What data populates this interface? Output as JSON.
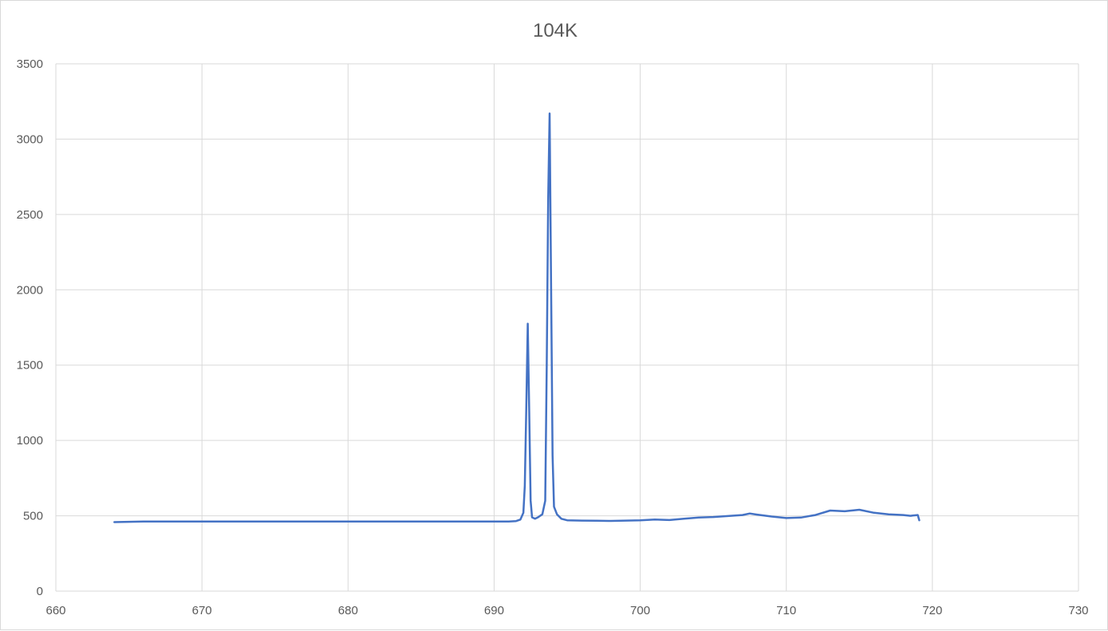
{
  "chart_data": {
    "type": "line",
    "title": "104K",
    "xlabel": "",
    "ylabel": "",
    "xlim": [
      660,
      730
    ],
    "ylim": [
      0,
      3500
    ],
    "x_ticks": [
      660,
      670,
      680,
      690,
      700,
      710,
      720,
      730
    ],
    "y_ticks": [
      0,
      500,
      1000,
      1500,
      2000,
      2500,
      3000,
      3500
    ],
    "grid": true,
    "legend": "none",
    "series_color": "#4472c4",
    "series": [
      {
        "x": [
          664.0,
          665.0,
          666.0,
          668.0,
          670.0,
          672.0,
          674.0,
          676.0,
          678.0,
          680.0,
          682.0,
          684.0,
          686.0,
          688.0,
          690.0,
          691.0,
          691.5,
          691.8,
          692.0,
          692.1,
          692.2,
          692.3,
          692.4,
          692.5,
          692.6,
          692.8,
          693.0,
          693.3,
          693.5,
          693.6,
          693.7,
          693.8,
          693.9,
          694.0,
          694.1,
          694.3,
          694.6,
          695.0,
          696.0,
          697.0,
          698.0,
          699.0,
          700.0,
          701.0,
          702.0,
          703.0,
          704.0,
          705.0,
          706.0,
          707.0,
          707.5,
          708.0,
          709.0,
          710.0,
          711.0,
          712.0,
          713.0,
          714.0,
          715.0,
          716.0,
          717.0,
          718.0,
          718.5,
          719.0,
          719.1
        ],
        "y": [
          458,
          460,
          462,
          462,
          462,
          462,
          462,
          462,
          462,
          462,
          462,
          462,
          462,
          462,
          462,
          462,
          465,
          475,
          520,
          700,
          1200,
          1775,
          1200,
          600,
          490,
          480,
          490,
          510,
          600,
          1500,
          2600,
          3170,
          2000,
          900,
          560,
          510,
          480,
          470,
          468,
          467,
          466,
          468,
          470,
          475,
          472,
          480,
          488,
          492,
          498,
          505,
          515,
          508,
          495,
          485,
          488,
          505,
          535,
          530,
          540,
          520,
          510,
          505,
          500,
          505,
          470
        ]
      }
    ]
  }
}
